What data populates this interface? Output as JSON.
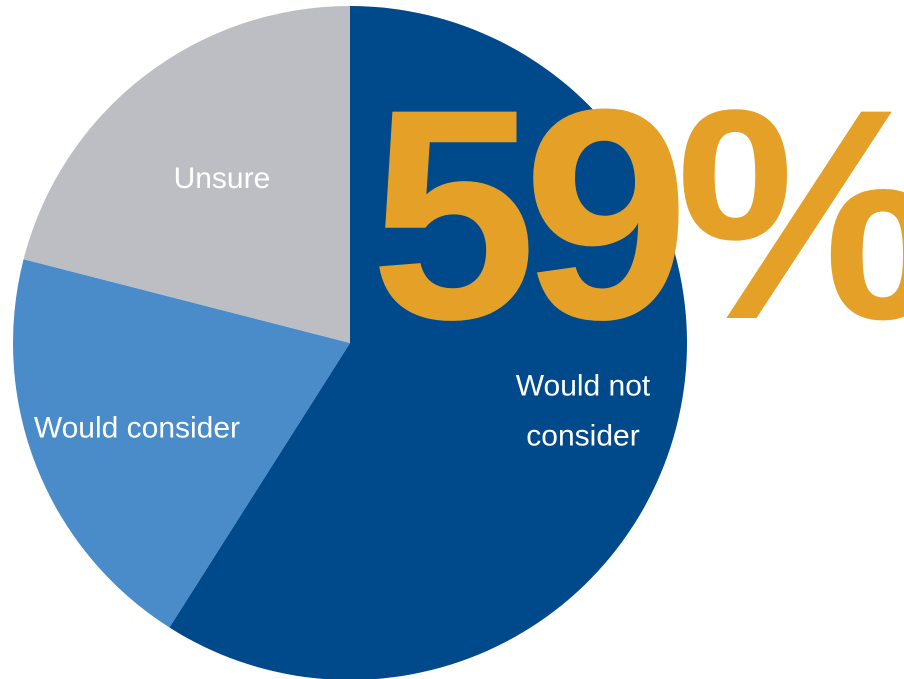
{
  "chart_data": {
    "type": "pie",
    "slices": [
      {
        "label": "Would not consider",
        "label_lines": [
          "Would not",
          "consider"
        ],
        "value": 59,
        "color": "#004A8C"
      },
      {
        "label": "Would consider",
        "label_lines": [
          "Would consider"
        ],
        "value": 20,
        "color": "#4A8BC9"
      },
      {
        "label": "Unsure",
        "label_lines": [
          "Unsure"
        ],
        "value": 21,
        "color": "#BCBEC4"
      }
    ],
    "start": "top, clockwise",
    "callout": {
      "text": "59%",
      "color": "#E5A127"
    }
  }
}
